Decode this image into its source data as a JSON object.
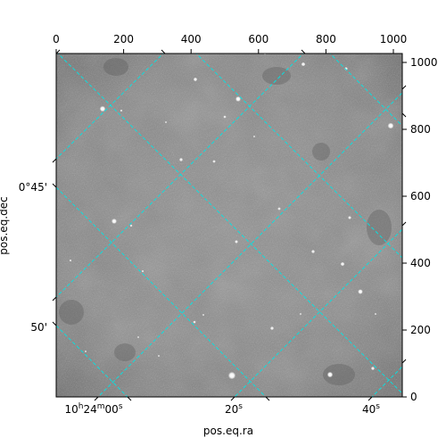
{
  "axes": {
    "x_label": "pos.eq.ra",
    "y_label": "pos.eq.dec",
    "top_ticks": [
      "0",
      "200",
      "400",
      "600",
      "800",
      "1000"
    ],
    "right_ticks": [
      "0",
      "200",
      "400",
      "600",
      "800",
      "1000"
    ],
    "ra_ticks": [
      {
        "h": "10",
        "m": "24",
        "s": "00",
        "label": "10h24m00s"
      },
      {
        "s": "20",
        "label": "20s"
      },
      {
        "s": "40",
        "label": "40s"
      }
    ],
    "dec_ticks": [
      "0°45'",
      "50'"
    ]
  },
  "image": {
    "kind": "grayscale astronomical image",
    "grid_color": "#00e5e5",
    "frame_color": "#000000",
    "background_gray": "#878787"
  }
}
